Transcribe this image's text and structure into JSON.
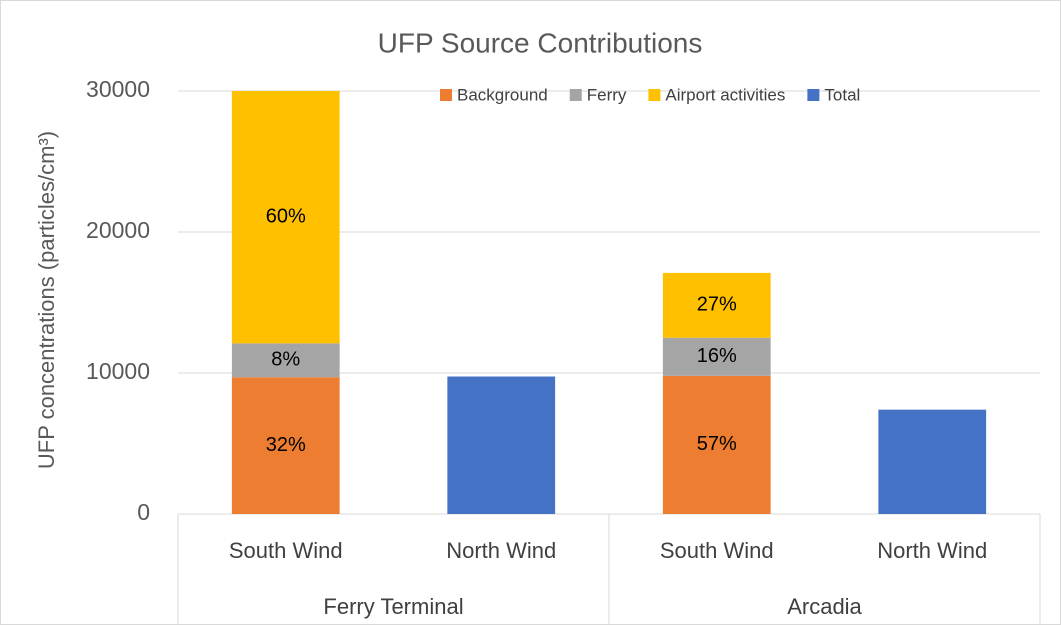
{
  "chart_data": {
    "type": "bar",
    "stacked": true,
    "title": "UFP Source Contributions",
    "y_label": "UFP concentrations (particles/cm³)",
    "categories": [
      "South Wind",
      "North Wind",
      "South Wind",
      "North Wind"
    ],
    "groups": [
      "Ferry Terminal",
      "Arcadia"
    ],
    "series": [
      {
        "name": "Background",
        "color": "#ED7D31",
        "values": [
          9700,
          null,
          9800,
          null
        ],
        "value_labels": [
          "32%",
          null,
          "57%",
          null
        ]
      },
      {
        "name": "Ferry",
        "color": "#A5A5A5",
        "values": [
          2400,
          null,
          2700,
          null
        ],
        "value_labels": [
          "8%",
          null,
          "16%",
          null
        ]
      },
      {
        "name": "Airport activities",
        "color": "#FFC000",
        "values": [
          17900,
          null,
          4600,
          null
        ],
        "value_labels": [
          "60%",
          null,
          "27%",
          null
        ]
      },
      {
        "name": "Total",
        "color": "#4472C4",
        "values": [
          null,
          9750,
          null,
          7400
        ]
      }
    ],
    "ylim": [
      0,
      30000
    ],
    "yticks": [
      0,
      10000,
      20000,
      30000
    ],
    "grid": true,
    "legend": "top"
  }
}
